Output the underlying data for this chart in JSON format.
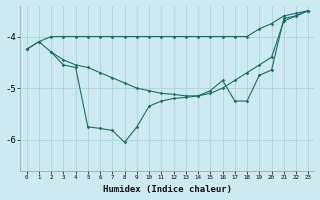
{
  "xlabel": "Humidex (Indice chaleur)",
  "bg_color": "#cdeaf0",
  "grid_color": "#aad4dc",
  "line_color": "#1a6b6b",
  "ylim": [
    -6.6,
    -3.4
  ],
  "xlim": [
    -0.5,
    23.5
  ],
  "yticks": [
    -6,
    -5,
    -4
  ],
  "line1_x": [
    0,
    1,
    2,
    3,
    4,
    5,
    6,
    7,
    8,
    9,
    10,
    11,
    12,
    13,
    14,
    15,
    16,
    17,
    18,
    19,
    20,
    21,
    22,
    23
  ],
  "line1_y": [
    -4.25,
    -4.1,
    -4.0,
    -4.0,
    -4.0,
    -4.0,
    -4.0,
    -4.0,
    -4.0,
    -4.0,
    -4.0,
    -4.0,
    -4.0,
    -4.0,
    -4.0,
    -4.0,
    -4.0,
    -4.0,
    -4.0,
    -3.85,
    -3.75,
    -3.6,
    -3.55,
    -3.5
  ],
  "line2_x": [
    0,
    1,
    2,
    3,
    4,
    5,
    6,
    7,
    8,
    9,
    10,
    11,
    12,
    13,
    14,
    15,
    16,
    17,
    18,
    19,
    20,
    21,
    22,
    23
  ],
  "line2_y": [
    -4.25,
    -4.1,
    -4.3,
    -4.45,
    -4.55,
    -4.6,
    -4.7,
    -4.8,
    -4.9,
    -5.0,
    -5.05,
    -5.1,
    -5.12,
    -5.15,
    -5.15,
    -5.1,
    -5.0,
    -4.85,
    -4.7,
    -4.55,
    -4.4,
    -3.7,
    -3.6,
    -3.5
  ],
  "line3_x": [
    2,
    3,
    4,
    5,
    6,
    7,
    8,
    9,
    10,
    11,
    12,
    13,
    14,
    15,
    16,
    17,
    18,
    19,
    20,
    21,
    22,
    23
  ],
  "line3_y": [
    -4.3,
    -4.55,
    -4.6,
    -5.75,
    -5.78,
    -5.82,
    -6.05,
    -5.75,
    -5.35,
    -5.25,
    -5.2,
    -5.18,
    -5.15,
    -5.05,
    -4.85,
    -5.25,
    -5.25,
    -4.75,
    -4.65,
    -3.65,
    -3.6,
    -3.5
  ]
}
